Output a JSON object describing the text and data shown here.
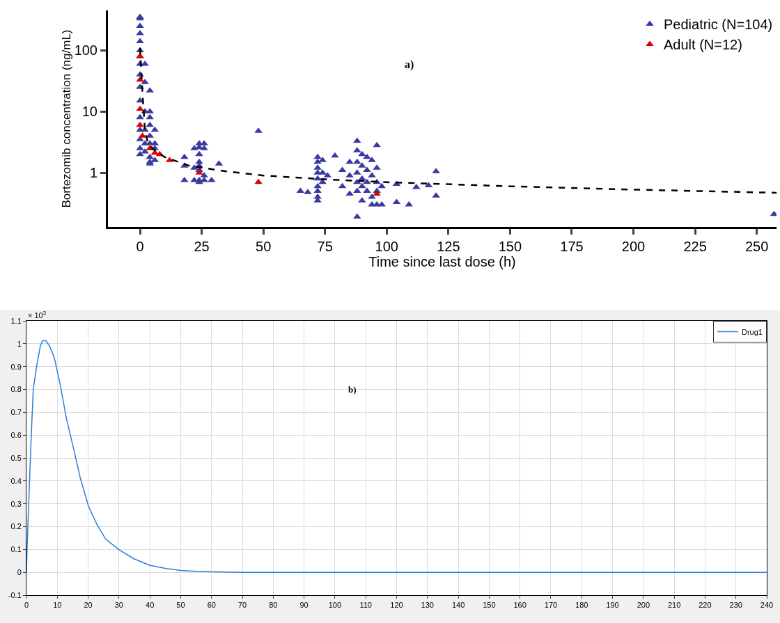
{
  "chart_data": [
    {
      "type": "scatter",
      "xlabel": "Time since last dose (h)",
      "ylabel": "Bortezomib concentration (ng/mL)",
      "annotations": [
        "a)"
      ],
      "xlim": [
        -13,
        258
      ],
      "xticks": [
        0,
        25,
        50,
        75,
        100,
        125,
        150,
        175,
        200,
        225,
        250
      ],
      "ylim": [
        0.13,
        450
      ],
      "yticks": [
        1,
        10,
        100
      ],
      "log": "y",
      "grid": false,
      "legend": "top right",
      "marker": "triangle",
      "series": [
        {
          "name": "Pediatric (N=104)",
          "color": "#3a3aa0",
          "x": [
            0,
            0,
            0,
            0,
            0,
            0,
            0,
            0,
            0,
            0,
            0,
            0,
            0,
            0,
            0,
            0,
            2,
            2,
            2,
            2,
            2,
            2,
            4,
            4,
            4,
            4,
            4,
            4,
            4,
            4,
            4,
            6,
            6,
            6,
            6,
            18,
            18,
            18,
            22,
            22,
            22,
            24,
            24,
            24,
            24,
            24,
            24,
            24,
            24,
            26,
            26,
            26,
            26,
            29,
            32,
            48,
            65,
            68,
            72,
            72,
            72,
            72,
            72,
            72,
            72,
            72,
            72,
            74,
            74,
            74,
            76,
            79,
            82,
            82,
            85,
            85,
            85,
            88,
            88,
            88,
            88,
            88,
            88,
            88,
            90,
            90,
            90,
            90,
            90,
            92,
            92,
            92,
            92,
            94,
            94,
            94,
            94,
            96,
            96,
            96,
            96,
            96,
            98,
            98,
            104,
            104,
            109,
            112,
            117,
            120,
            120,
            257
          ],
          "values": [
            350,
            330,
            250,
            190,
            140,
            100,
            80,
            60,
            40,
            25,
            15,
            8,
            5,
            3.5,
            2.5,
            2,
            60,
            30,
            10,
            5,
            3,
            2.2,
            22,
            10,
            8,
            6,
            4,
            3,
            1.8,
            1.5,
            1.4,
            5,
            3,
            2.5,
            1.6,
            1.8,
            1.3,
            0.75,
            2.5,
            1.2,
            0.75,
            3,
            2.6,
            2,
            1.5,
            1.3,
            1.1,
            0.75,
            0.7,
            3,
            2.5,
            0.9,
            0.75,
            0.75,
            1.4,
            4.8,
            0.5,
            0.48,
            1.8,
            1.5,
            1.2,
            1,
            0.8,
            0.6,
            0.5,
            0.4,
            0.35,
            1.6,
            1,
            0.7,
            0.9,
            1.9,
            0.6,
            1.1,
            1.5,
            0.9,
            0.45,
            3.3,
            2.3,
            1.5,
            1,
            0.7,
            0.5,
            0.19,
            2,
            1.3,
            0.8,
            0.6,
            0.35,
            1.8,
            1.1,
            0.7,
            0.5,
            1.6,
            0.9,
            0.4,
            0.3,
            2.8,
            1.2,
            0.7,
            0.5,
            0.3,
            0.6,
            0.3,
            0.65,
            0.33,
            0.3,
            0.58,
            0.62,
            1.05,
            0.42,
            0.21
          ]
        },
        {
          "name": "Adult (N=12)",
          "color": "#e00000",
          "x": [
            0,
            0,
            0,
            0,
            1,
            4,
            6,
            8,
            12,
            24,
            48,
            96
          ],
          "values": [
            80,
            33,
            11,
            6,
            4,
            2.5,
            2.1,
            2,
            1.6,
            1,
            0.7,
            0.45
          ]
        },
        {
          "type": "line",
          "color": "#000000",
          "line_style": "dashed",
          "marker": "none",
          "x": [
            0,
            1,
            2,
            3,
            5,
            10,
            20,
            35,
            50,
            75,
            100,
            150,
            200,
            258
          ],
          "values": [
            110,
            20,
            5,
            3.3,
            2.5,
            1.8,
            1.3,
            1.05,
            0.9,
            0.78,
            0.7,
            0.6,
            0.53,
            0.47
          ]
        }
      ]
    },
    {
      "type": "line",
      "annotations": [
        "× 10$^{3}$",
        "b)"
      ],
      "xlim": [
        0,
        240
      ],
      "xticks": [
        0,
        10,
        20,
        30,
        40,
        50,
        60,
        70,
        80,
        90,
        100,
        110,
        120,
        130,
        140,
        150,
        160,
        170,
        180,
        190,
        200,
        210,
        220,
        230,
        240
      ],
      "ylim": [
        -0.1,
        1.1
      ],
      "yticks": [
        -0.1,
        0,
        0.1,
        0.2,
        0.3,
        0.4,
        0.5,
        0.6,
        0.7,
        0.8,
        0.9,
        1,
        1.1
      ],
      "grid": true,
      "legend": "top right",
      "marker": "none",
      "line_style": "solid",
      "series": [
        {
          "name": "Drug1",
          "color": "#2a7fd4",
          "x": [
            0,
            0.2,
            0.75,
            1.5,
            2.2,
            3.4,
            4.5,
            5.2,
            6.3,
            7.5,
            9,
            10.8,
            13,
            15.3,
            17.5,
            20.1,
            22.8,
            25.7,
            29.9,
            34.7,
            39.9,
            45,
            50,
            55,
            60,
            70,
            100,
            150,
            200,
            240
          ],
          "values": [
            0,
            0.107,
            0.31,
            0.58,
            0.8,
            0.91,
            0.99,
            1.013,
            1.013,
            0.99,
            0.94,
            0.83,
            0.67,
            0.54,
            0.41,
            0.29,
            0.21,
            0.145,
            0.1,
            0.06,
            0.031,
            0.017,
            0.008,
            0.004,
            0.002,
            0,
            0,
            0,
            0,
            0
          ]
        }
      ]
    }
  ]
}
